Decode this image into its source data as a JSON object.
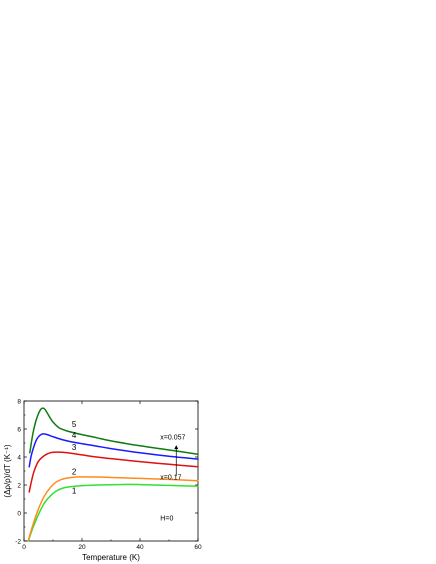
{
  "chart_data": {
    "type": "line",
    "title": "",
    "xlabel": "Temperature (K)",
    "ylabel": "(Δρ/ρ)/dT (K⁻¹)",
    "xlim": [
      0,
      60
    ],
    "ylim": [
      -2,
      8
    ],
    "xticks": [
      0,
      20,
      40,
      60
    ],
    "yticks": [
      -2,
      0,
      2,
      4,
      6,
      8
    ],
    "grid": false,
    "series": [
      {
        "label": "1",
        "color": "#33e033",
        "points": [
          [
            1.5,
            -2.0
          ],
          [
            3,
            -1.1
          ],
          [
            5,
            -0.1
          ],
          [
            7,
            0.7
          ],
          [
            9,
            1.2
          ],
          [
            11,
            1.55
          ],
          [
            13,
            1.75
          ],
          [
            15,
            1.85
          ],
          [
            18,
            1.92
          ],
          [
            22,
            1.97
          ],
          [
            26,
            2.0
          ],
          [
            30,
            2.02
          ],
          [
            35,
            2.04
          ],
          [
            40,
            2.03
          ],
          [
            45,
            2.0
          ],
          [
            50,
            1.97
          ],
          [
            55,
            1.94
          ],
          [
            60,
            1.92
          ]
        ]
      },
      {
        "label": "2",
        "color": "#ff8c1a",
        "points": [
          [
            1.5,
            -1.95
          ],
          [
            3,
            -0.9
          ],
          [
            5,
            0.3
          ],
          [
            7,
            1.2
          ],
          [
            9,
            1.8
          ],
          [
            11,
            2.2
          ],
          [
            13,
            2.4
          ],
          [
            15,
            2.5
          ],
          [
            18,
            2.57
          ],
          [
            20,
            2.58
          ],
          [
            25,
            2.57
          ],
          [
            30,
            2.54
          ],
          [
            40,
            2.47
          ],
          [
            50,
            2.4
          ],
          [
            60,
            2.3
          ]
        ]
      },
      {
        "label": "3",
        "color": "#e01010",
        "points": [
          [
            1.8,
            1.5
          ],
          [
            2.5,
            2.2
          ],
          [
            3.5,
            3.0
          ],
          [
            5,
            3.7
          ],
          [
            7,
            4.1
          ],
          [
            9,
            4.3
          ],
          [
            11,
            4.35
          ],
          [
            13,
            4.34
          ],
          [
            15,
            4.3
          ],
          [
            20,
            4.15
          ],
          [
            25,
            4.0
          ],
          [
            30,
            3.88
          ],
          [
            40,
            3.67
          ],
          [
            50,
            3.48
          ],
          [
            60,
            3.3
          ]
        ]
      },
      {
        "label": "4",
        "color": "#1a1aff",
        "points": [
          [
            1.8,
            3.3
          ],
          [
            2.5,
            4.1
          ],
          [
            3.5,
            4.8
          ],
          [
            4.5,
            5.3
          ],
          [
            5.5,
            5.55
          ],
          [
            6.5,
            5.65
          ],
          [
            8,
            5.6
          ],
          [
            10,
            5.45
          ],
          [
            13,
            5.25
          ],
          [
            16,
            5.1
          ],
          [
            20,
            4.95
          ],
          [
            25,
            4.78
          ],
          [
            30,
            4.6
          ],
          [
            40,
            4.3
          ],
          [
            50,
            4.05
          ],
          [
            60,
            3.85
          ]
        ]
      },
      {
        "label": "5",
        "color": "#117a11",
        "points": [
          [
            2,
            4.3
          ],
          [
            3,
            5.6
          ],
          [
            4,
            6.5
          ],
          [
            5,
            7.1
          ],
          [
            6,
            7.45
          ],
          [
            7,
            7.45
          ],
          [
            8,
            7.15
          ],
          [
            9,
            6.8
          ],
          [
            10,
            6.5
          ],
          [
            12,
            6.1
          ],
          [
            15,
            5.85
          ],
          [
            20,
            5.6
          ],
          [
            25,
            5.38
          ],
          [
            30,
            5.15
          ],
          [
            40,
            4.8
          ],
          [
            50,
            4.5
          ],
          [
            60,
            4.2
          ]
        ]
      }
    ],
    "curve_labels": [
      {
        "text": "1",
        "x": 16.5,
        "y": 1.4
      },
      {
        "text": "2",
        "x": 16.5,
        "y": 2.75
      },
      {
        "text": "3",
        "x": 16.5,
        "y": 4.5
      },
      {
        "text": "4",
        "x": 16.5,
        "y": 5.35
      },
      {
        "text": "5",
        "x": 16.5,
        "y": 6.15
      }
    ],
    "annotations": [
      {
        "text": "x=0.057",
        "x": 47,
        "y": 5.25
      },
      {
        "text": "x=0.17",
        "x": 47,
        "y": 2.4
      },
      {
        "text": "H=0",
        "x": 47,
        "y": -0.55
      }
    ],
    "arrow": {
      "x": 52.5,
      "y_from": 2.65,
      "y_to": 4.85
    }
  }
}
